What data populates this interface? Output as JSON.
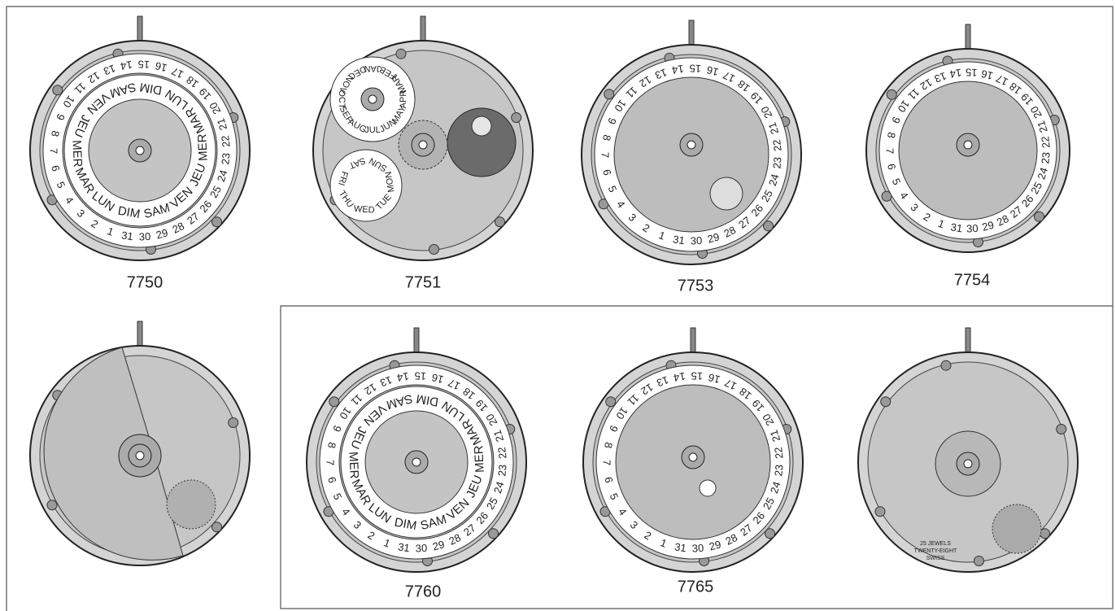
{
  "movements": [
    {
      "label": "7750"
    },
    {
      "label": "7751"
    },
    {
      "label": "7753"
    },
    {
      "label": "7754"
    },
    {
      "label": "7760"
    },
    {
      "label": "7765"
    }
  ],
  "dial": {
    "date_numbers": [
      "1",
      "2",
      "3",
      "4",
      "5",
      "6",
      "7",
      "8",
      "9",
      "10",
      "11",
      "12",
      "13",
      "14",
      "15",
      "16",
      "17",
      "18",
      "19",
      "20",
      "21",
      "22",
      "23",
      "24",
      "25",
      "26",
      "27",
      "28",
      "29",
      "30",
      "31"
    ],
    "days_fr": [
      "DIM",
      "LUN",
      "MAR",
      "MER",
      "JEU",
      "VEN",
      "SAM"
    ],
    "days_en": [
      "SUN",
      "MON",
      "TUE",
      "WED",
      "THU",
      "FRI",
      "SAT"
    ],
    "months": [
      "JAN",
      "FEB",
      "MAR",
      "APR",
      "MAY",
      "JUN",
      "JUL",
      "AUG",
      "SEP",
      "OCT",
      "NOV",
      "DEC"
    ]
  },
  "engraving": [
    "25 JEWELS",
    "TWENTY-EIGHT",
    "SWISS"
  ]
}
